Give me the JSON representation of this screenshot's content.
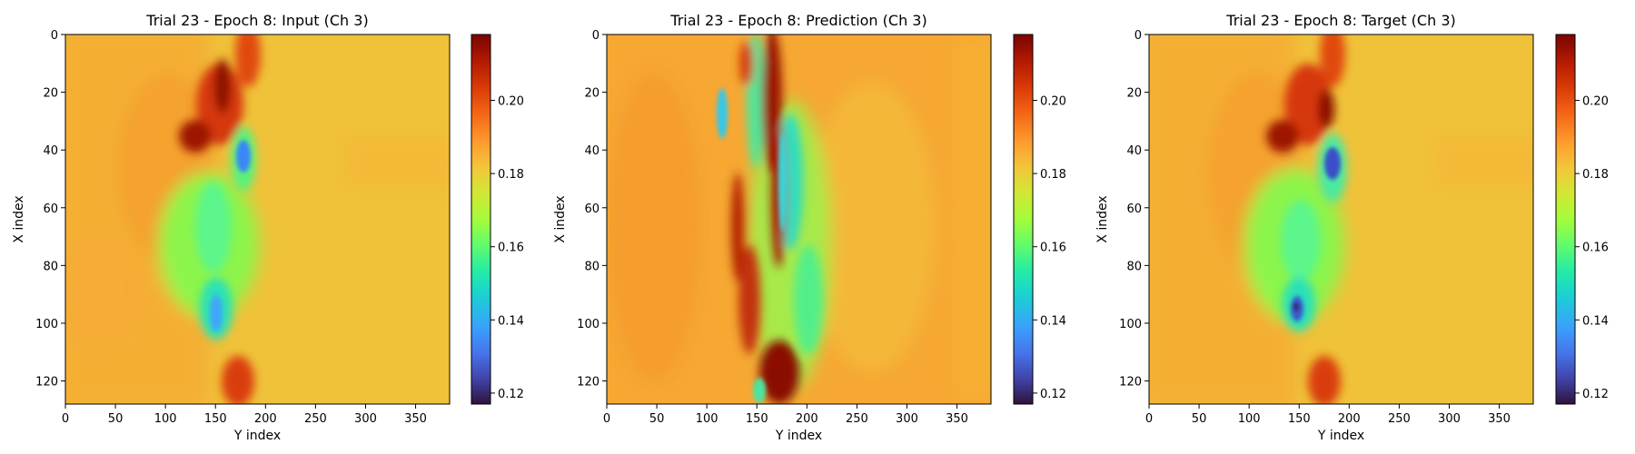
{
  "chart_data": [
    {
      "type": "heatmap",
      "title": "Trial 23 - Epoch 8: Input (Ch 3)",
      "xlabel": "Y index",
      "ylabel": "X index",
      "xlim": [
        0,
        384
      ],
      "ylim": [
        128,
        0
      ],
      "xticks": [
        "0",
        "50",
        "100",
        "150",
        "200",
        "250",
        "300",
        "350"
      ],
      "yticks": [
        "0",
        "20",
        "40",
        "60",
        "80",
        "100",
        "120"
      ],
      "colorbar": {
        "colormap": "turbo",
        "min": 0.117,
        "max": 0.218,
        "ticks": [
          "0.12",
          "0.14",
          "0.16",
          "0.18",
          "0.20"
        ]
      },
      "background_value": 0.185
    },
    {
      "type": "heatmap",
      "title": "Trial 23 - Epoch 8: Prediction (Ch 3)",
      "xlabel": "Y index",
      "ylabel": "X index",
      "xlim": [
        0,
        384
      ],
      "ylim": [
        128,
        0
      ],
      "xticks": [
        "0",
        "50",
        "100",
        "150",
        "200",
        "250",
        "300",
        "350"
      ],
      "yticks": [
        "0",
        "20",
        "40",
        "60",
        "80",
        "100",
        "120"
      ],
      "colorbar": {
        "colormap": "turbo",
        "min": 0.117,
        "max": 0.218,
        "ticks": [
          "0.12",
          "0.14",
          "0.16",
          "0.18",
          "0.20"
        ]
      },
      "background_value": 0.19
    },
    {
      "type": "heatmap",
      "title": "Trial 23 - Epoch 8: Target (Ch 3)",
      "xlabel": "Y index",
      "ylabel": "X index",
      "xlim": [
        0,
        384
      ],
      "ylim": [
        128,
        0
      ],
      "xticks": [
        "0",
        "50",
        "100",
        "150",
        "200",
        "250",
        "300",
        "350"
      ],
      "yticks": [
        "0",
        "20",
        "40",
        "60",
        "80",
        "100",
        "120"
      ],
      "colorbar": {
        "colormap": "turbo",
        "min": 0.117,
        "max": 0.218,
        "ticks": [
          "0.12",
          "0.14",
          "0.16",
          "0.18",
          "0.20"
        ]
      },
      "background_value": 0.185
    }
  ]
}
